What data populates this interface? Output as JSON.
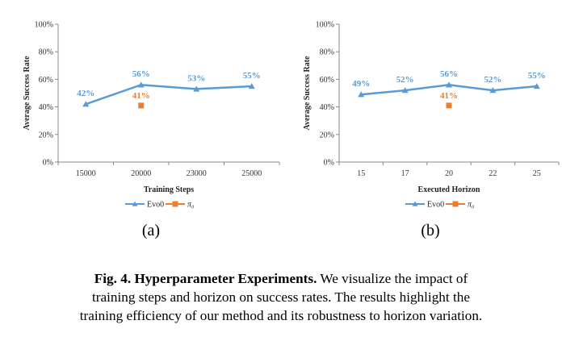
{
  "colors": {
    "evo0": "#5b9bd5",
    "pi0": "#ed7d31",
    "axis": "#888888",
    "grid": "#d9d9d9"
  },
  "caption": {
    "label": "Fig. 4.",
    "bold_title": "Hyperparameter Experiments.",
    "lines": [
      "We visualize the impact of",
      "training steps and horizon on success rates. The results highlight the",
      "training efficiency of our method and its robustness to horizon variation."
    ]
  },
  "chart_data": [
    {
      "type": "line",
      "subplot_label": "(a)",
      "title": "",
      "xlabel": "Training Steps",
      "ylabel": "Average Success Rate",
      "categories": [
        "15000",
        "20000",
        "23000",
        "25000"
      ],
      "ylim": [
        0,
        100
      ],
      "yticks": [
        "0%",
        "20%",
        "40%",
        "60%",
        "80%",
        "100%"
      ],
      "legend": {
        "placement": "bottom"
      },
      "series": [
        {
          "name": "Evo0",
          "marker": "triangle",
          "values": [
            42,
            56,
            53,
            55
          ],
          "labels": [
            "42%",
            "56%",
            "53%",
            "55%"
          ]
        },
        {
          "name": "π₀",
          "marker": "square",
          "points": [
            {
              "category_index": 1,
              "value": 41,
              "label": "41%"
            }
          ]
        }
      ]
    },
    {
      "type": "line",
      "subplot_label": "(b)",
      "title": "",
      "xlabel": "Executed Horizon",
      "ylabel": "Average Success Rate",
      "categories": [
        "15",
        "17",
        "20",
        "22",
        "25"
      ],
      "ylim": [
        0,
        100
      ],
      "yticks": [
        "0%",
        "20%",
        "40%",
        "60%",
        "80%",
        "100%"
      ],
      "legend": {
        "placement": "bottom"
      },
      "series": [
        {
          "name": "Evo0",
          "marker": "triangle",
          "values": [
            49,
            52,
            56,
            52,
            55
          ],
          "labels": [
            "49%",
            "52%",
            "56%",
            "52%",
            "55%"
          ]
        },
        {
          "name": "π₀",
          "marker": "square",
          "points": [
            {
              "category_index": 2,
              "value": 41,
              "label": "41%"
            }
          ]
        }
      ]
    }
  ]
}
